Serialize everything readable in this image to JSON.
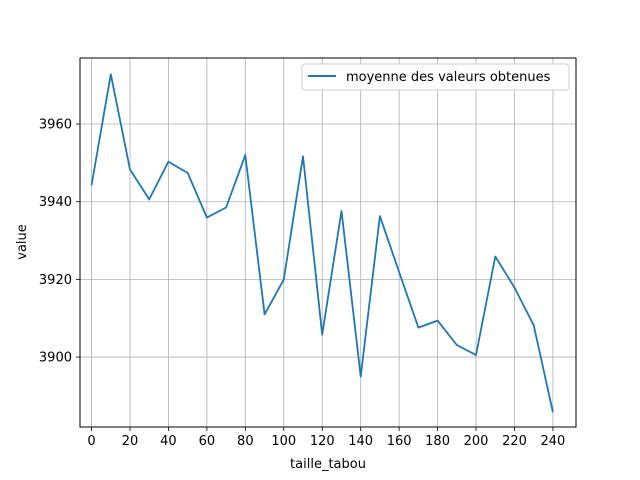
{
  "chart_data": {
    "type": "line",
    "title": "",
    "xlabel": "taille_tabou",
    "ylabel": "value",
    "xlim": [
      -6,
      252
    ],
    "ylim": [
      3882,
      3977
    ],
    "x_ticks": [
      0,
      20,
      40,
      60,
      80,
      100,
      120,
      140,
      160,
      180,
      200,
      220,
      240
    ],
    "y_ticks": [
      3900,
      3920,
      3940,
      3960
    ],
    "grid": true,
    "legend_position": "top-right",
    "series": [
      {
        "name": "moyenne des valeurs obtenues",
        "color": "#1f77b4",
        "x": [
          0,
          10,
          20,
          30,
          40,
          50,
          60,
          70,
          80,
          90,
          100,
          110,
          120,
          130,
          140,
          150,
          160,
          170,
          180,
          190,
          200,
          210,
          220,
          230,
          240
        ],
        "y": [
          3944.2,
          3972.8,
          3948.3,
          3940.6,
          3950.3,
          3947.4,
          3935.9,
          3938.5,
          3952.0,
          3911.0,
          3920.0,
          3951.7,
          3905.8,
          3937.6,
          3895.0,
          3936.3,
          3921.9,
          3907.6,
          3909.4,
          3903.1,
          3900.5,
          3925.9,
          3917.9,
          3908.2,
          3885.8
        ]
      }
    ]
  }
}
